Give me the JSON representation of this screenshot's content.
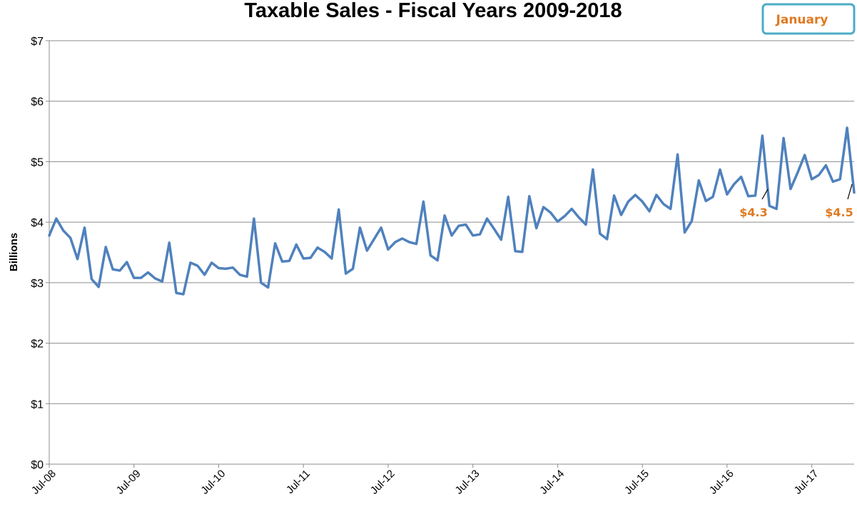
{
  "chart_data": {
    "type": "line",
    "title": "Taxable Sales - Fiscal Years 2009-2018",
    "ylabel": "Billions",
    "xlabel": "",
    "ylim": [
      0,
      7
    ],
    "y_ticks": [
      0,
      1,
      2,
      3,
      4,
      5,
      6,
      7
    ],
    "y_tick_labels": [
      "$0",
      "$1",
      "$2",
      "$3",
      "$4",
      "$5",
      "$6",
      "$7"
    ],
    "x_tick_labels": [
      "Jul-08",
      "Jul-09",
      "Jul-10",
      "Jul-11",
      "Jul-12",
      "Jul-13",
      "Jul-14",
      "Jul-15",
      "Jul-16",
      "Jul-17"
    ],
    "x_start": "Jul-08",
    "x_end": "Jan-18",
    "grid": "horizontal",
    "colors": {
      "line": "#4F81BD",
      "annotation": "#E07A22",
      "badge_border": "#4BACC6",
      "grid": "#8C8C8C"
    },
    "series": [
      {
        "values": [
          3.78,
          4.06,
          3.86,
          3.74,
          3.39,
          3.91,
          3.06,
          2.93,
          3.59,
          3.22,
          3.2,
          3.34,
          3.08,
          3.08,
          3.17,
          3.07,
          3.02,
          3.66,
          2.83,
          2.81,
          3.33,
          3.28,
          3.13,
          3.33,
          3.24,
          3.23,
          3.25,
          3.13,
          3.1,
          4.06,
          3.0,
          2.92,
          3.65,
          3.35,
          3.36,
          3.63,
          3.4,
          3.41,
          3.58,
          3.51,
          3.4,
          4.21,
          3.15,
          3.23,
          3.91,
          3.53,
          3.72,
          3.91,
          3.55,
          3.67,
          3.73,
          3.67,
          3.64,
          4.34,
          3.45,
          3.37,
          4.11,
          3.78,
          3.94,
          3.96,
          3.78,
          3.8,
          4.06,
          3.89,
          3.71,
          4.42,
          3.52,
          3.51,
          4.43,
          3.9,
          4.25,
          4.16,
          4.01,
          4.1,
          4.22,
          4.08,
          3.96,
          4.87,
          3.81,
          3.72,
          4.44,
          4.12,
          4.34,
          4.45,
          4.34,
          4.18,
          4.45,
          4.3,
          4.22,
          5.12,
          3.83,
          4.02,
          4.69,
          4.35,
          4.42,
          4.87,
          4.46,
          4.63,
          4.75,
          4.43,
          4.44,
          5.43,
          4.27,
          4.22,
          5.39,
          4.55,
          4.82,
          5.11,
          4.71,
          4.78,
          4.94,
          4.67,
          4.71,
          5.56,
          4.49
        ]
      }
    ],
    "annotations": [
      {
        "label": "$4.3",
        "x": "Jan-17",
        "y": 4.27
      },
      {
        "label": "$4.5",
        "x": "Jan-18",
        "y": 4.49
      }
    ],
    "badge": "January"
  }
}
